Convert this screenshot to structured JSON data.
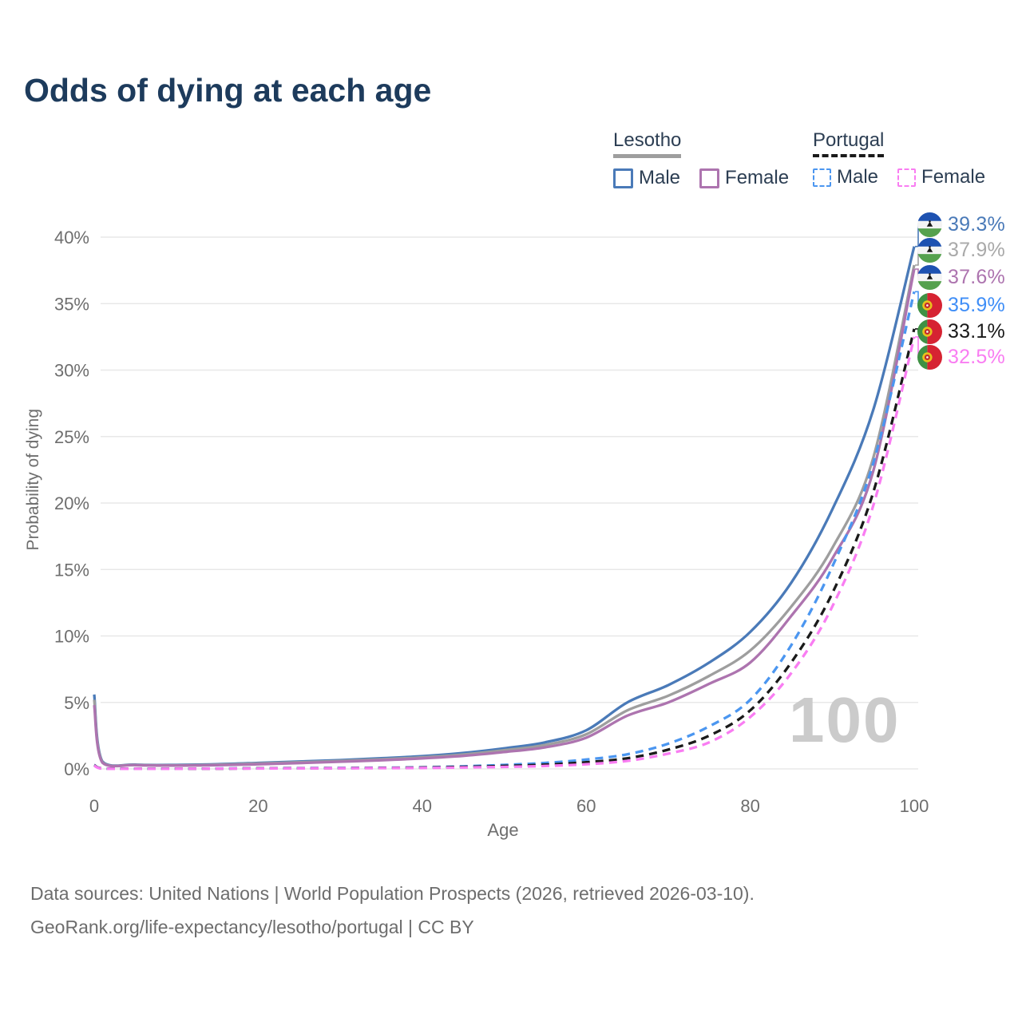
{
  "title": "Odds of dying at each age",
  "legend": {
    "groups": [
      {
        "label": "Lesotho",
        "items": [
          {
            "label": "Male"
          },
          {
            "label": "Female"
          }
        ]
      },
      {
        "label": "Portugal",
        "items": [
          {
            "label": "Male"
          },
          {
            "label": "Female"
          }
        ]
      }
    ]
  },
  "chart_data": {
    "type": "line",
    "title": "Odds of dying at each age",
    "xlabel": "Age",
    "ylabel": "Probability of dying",
    "xlim": [
      0,
      100
    ],
    "ylim": [
      0,
      40
    ],
    "unit": "%",
    "grid": "horizontal",
    "legend_position": "top-right",
    "x_ticks": {
      "values": [
        0,
        20,
        40,
        60,
        80,
        100
      ],
      "labels": [
        "0",
        "20",
        "40",
        "60",
        "80",
        "100"
      ]
    },
    "y_ticks": {
      "values": [
        0,
        5,
        10,
        15,
        20,
        25,
        30,
        35,
        40
      ],
      "labels": [
        "0%",
        "5%",
        "10%",
        "15%",
        "20%",
        "25%",
        "30%",
        "35%",
        "40%"
      ]
    },
    "x": [
      0,
      1,
      5,
      10,
      15,
      20,
      25,
      30,
      35,
      40,
      45,
      50,
      55,
      60,
      65,
      70,
      75,
      80,
      85,
      90,
      95,
      100
    ],
    "series": [
      {
        "name": "Lesotho Male",
        "country": "Lesotho",
        "sex": "Male",
        "style": "solid",
        "color": "#4a7ab8",
        "end_value_label": "39.3%",
        "values": [
          5.6,
          0.55,
          0.32,
          0.3,
          0.35,
          0.45,
          0.55,
          0.66,
          0.8,
          0.96,
          1.2,
          1.55,
          2.0,
          2.9,
          5.0,
          6.3,
          8.0,
          10.3,
          14.0,
          19.5,
          27.0,
          39.3
        ]
      },
      {
        "name": "Lesotho (both sexes)",
        "country": "Lesotho",
        "sex": "Both",
        "style": "solid",
        "color": "#9e9e9e",
        "end_value_label": "37.9%",
        "values": [
          5.2,
          0.5,
          0.3,
          0.27,
          0.31,
          0.4,
          0.5,
          0.6,
          0.72,
          0.87,
          1.08,
          1.4,
          1.8,
          2.6,
          4.4,
          5.5,
          7.0,
          8.9,
          12.2,
          16.6,
          23.4,
          37.9
        ]
      },
      {
        "name": "Lesotho Female",
        "country": "Lesotho",
        "sex": "Female",
        "style": "solid",
        "color": "#ad74af",
        "end_value_label": "37.6%",
        "values": [
          4.8,
          0.46,
          0.28,
          0.25,
          0.28,
          0.35,
          0.44,
          0.54,
          0.65,
          0.79,
          0.98,
          1.27,
          1.62,
          2.35,
          4.0,
          5.0,
          6.4,
          8.0,
          11.5,
          15.8,
          22.4,
          37.6
        ]
      },
      {
        "name": "Portugal Male",
        "country": "Portugal",
        "sex": "Male",
        "style": "dashed",
        "color": "#4b96f0",
        "end_value_label": "35.9%",
        "values": [
          0.3,
          0.03,
          0.01,
          0.01,
          0.03,
          0.05,
          0.06,
          0.07,
          0.09,
          0.12,
          0.19,
          0.3,
          0.45,
          0.7,
          1.1,
          1.9,
          3.2,
          5.2,
          9.3,
          15.2,
          23.0,
          35.9
        ]
      },
      {
        "name": "Portugal (both sexes)",
        "country": "Portugal",
        "sex": "Both",
        "style": "dashed",
        "color": "#1a1a1a",
        "end_value_label": "33.1%",
        "values": [
          0.28,
          0.03,
          0.01,
          0.01,
          0.02,
          0.04,
          0.05,
          0.06,
          0.07,
          0.1,
          0.15,
          0.22,
          0.32,
          0.5,
          0.8,
          1.45,
          2.5,
          4.4,
          8.0,
          13.2,
          20.8,
          33.1
        ]
      },
      {
        "name": "Portugal Female",
        "country": "Portugal",
        "sex": "Female",
        "style": "dashed",
        "color": "#f97df2",
        "end_value_label": "32.5%",
        "values": [
          0.25,
          0.02,
          0.01,
          0.01,
          0.02,
          0.03,
          0.04,
          0.05,
          0.06,
          0.07,
          0.11,
          0.15,
          0.22,
          0.35,
          0.6,
          1.15,
          2.0,
          3.9,
          7.2,
          12.2,
          19.8,
          32.5
        ]
      }
    ]
  },
  "end_labels": [
    {
      "value": "39.3%",
      "flag": "lesotho",
      "color": "#4a7ab8"
    },
    {
      "value": "37.9%",
      "flag": "lesotho",
      "color": "#a9a9a9"
    },
    {
      "value": "37.6%",
      "flag": "lesotho",
      "color": "#ad74af"
    },
    {
      "value": "35.9%",
      "flag": "portugal",
      "color": "#3f8ef7"
    },
    {
      "value": "33.1%",
      "flag": "portugal",
      "color": "#1a1a1a"
    },
    {
      "value": "32.5%",
      "flag": "portugal",
      "color": "#f97df2"
    }
  ],
  "watermark": "100",
  "footer": {
    "line1": "Data sources: United Nations | World Population Prospects (2026, retrieved 2026-03-10).",
    "line2": "GeoRank.org/life-expectancy/lesotho/portugal | CC BY"
  }
}
